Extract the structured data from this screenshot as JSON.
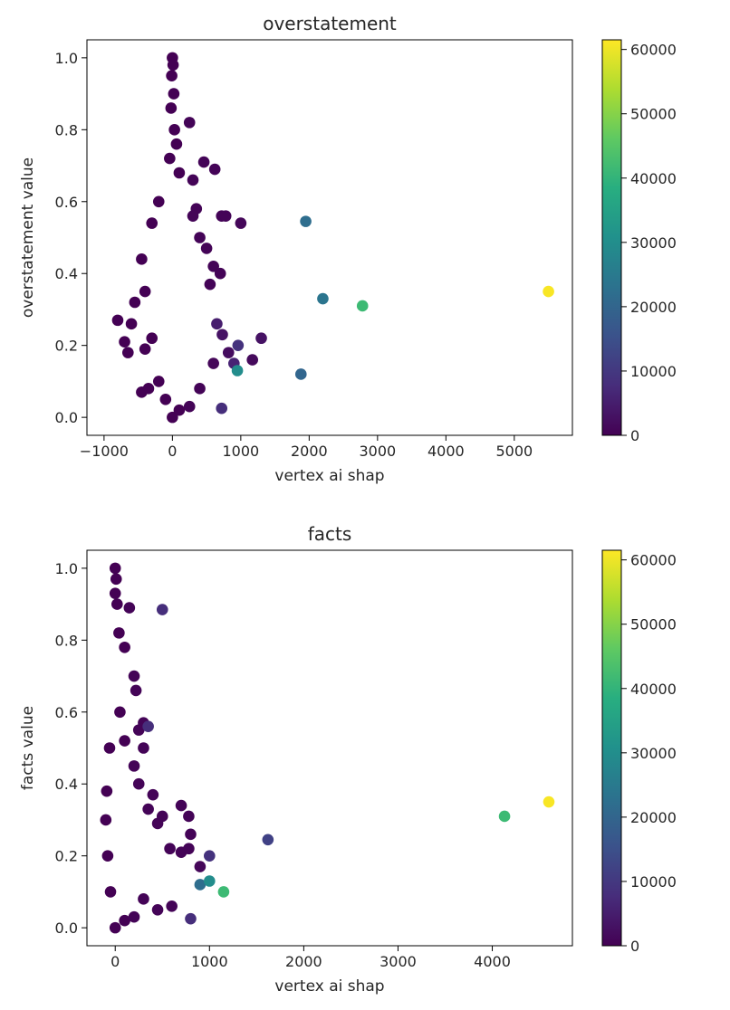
{
  "chart_data": [
    {
      "type": "scatter",
      "title": "overstatement",
      "xlabel": "vertex ai shap",
      "ylabel": "overstatement value",
      "xlim": [
        -1250,
        5850
      ],
      "ylim": [
        -0.05,
        1.05
      ],
      "xticks": [
        -1000,
        0,
        1000,
        2000,
        3000,
        4000,
        5000
      ],
      "xtick_labels": [
        "−1000",
        "0",
        "1000",
        "2000",
        "3000",
        "4000",
        "5000"
      ],
      "yticks": [
        0.0,
        0.2,
        0.4,
        0.6,
        0.8,
        1.0
      ],
      "ytick_labels": [
        "0.0",
        "0.2",
        "0.4",
        "0.6",
        "0.8",
        "1.0"
      ],
      "colorbar": {
        "colormap": "viridis",
        "min": 0,
        "max": 61500,
        "ticks": [
          0,
          10000,
          20000,
          30000,
          40000,
          50000,
          60000
        ]
      },
      "grid": false,
      "points": [
        {
          "x": 0,
          "y": 1.0,
          "c": 0
        },
        {
          "x": 10,
          "y": 0.98,
          "c": 0
        },
        {
          "x": -10,
          "y": 0.95,
          "c": 0
        },
        {
          "x": 20,
          "y": 0.9,
          "c": 0
        },
        {
          "x": -20,
          "y": 0.86,
          "c": 0
        },
        {
          "x": 30,
          "y": 0.8,
          "c": 0
        },
        {
          "x": 60,
          "y": 0.76,
          "c": 0
        },
        {
          "x": -40,
          "y": 0.72,
          "c": 0
        },
        {
          "x": 250,
          "y": 0.82,
          "c": 500
        },
        {
          "x": 100,
          "y": 0.68,
          "c": 0
        },
        {
          "x": 460,
          "y": 0.71,
          "c": 500
        },
        {
          "x": 620,
          "y": 0.69,
          "c": 500
        },
        {
          "x": 300,
          "y": 0.66,
          "c": 500
        },
        {
          "x": 350,
          "y": 0.58,
          "c": 500
        },
        {
          "x": 720,
          "y": 0.56,
          "c": 500
        },
        {
          "x": 780,
          "y": 0.56,
          "c": 500
        },
        {
          "x": 1000,
          "y": 0.54,
          "c": 1000
        },
        {
          "x": -300,
          "y": 0.54,
          "c": 0
        },
        {
          "x": -200,
          "y": 0.6,
          "c": 0
        },
        {
          "x": 300,
          "y": 0.56,
          "c": 500
        },
        {
          "x": 400,
          "y": 0.5,
          "c": 500
        },
        {
          "x": 500,
          "y": 0.47,
          "c": 500
        },
        {
          "x": 600,
          "y": 0.42,
          "c": 500
        },
        {
          "x": 700,
          "y": 0.4,
          "c": 500
        },
        {
          "x": 550,
          "y": 0.37,
          "c": 500
        },
        {
          "x": -450,
          "y": 0.44,
          "c": 0
        },
        {
          "x": -400,
          "y": 0.35,
          "c": 0
        },
        {
          "x": -550,
          "y": 0.32,
          "c": 0
        },
        {
          "x": -600,
          "y": 0.26,
          "c": 0
        },
        {
          "x": -800,
          "y": 0.27,
          "c": 0
        },
        {
          "x": -700,
          "y": 0.21,
          "c": 0
        },
        {
          "x": -650,
          "y": 0.18,
          "c": 0
        },
        {
          "x": -400,
          "y": 0.19,
          "c": 0
        },
        {
          "x": -300,
          "y": 0.22,
          "c": 0
        },
        {
          "x": -450,
          "y": 0.07,
          "c": 0
        },
        {
          "x": -350,
          "y": 0.08,
          "c": 0
        },
        {
          "x": -200,
          "y": 0.1,
          "c": 0
        },
        {
          "x": -100,
          "y": 0.05,
          "c": 0
        },
        {
          "x": 0,
          "y": 0.0,
          "c": 0
        },
        {
          "x": 100,
          "y": 0.02,
          "c": 0
        },
        {
          "x": 250,
          "y": 0.03,
          "c": 500
        },
        {
          "x": 400,
          "y": 0.08,
          "c": 500
        },
        {
          "x": 600,
          "y": 0.15,
          "c": 1000
        },
        {
          "x": 650,
          "y": 0.26,
          "c": 5000
        },
        {
          "x": 730,
          "y": 0.23,
          "c": 3000
        },
        {
          "x": 820,
          "y": 0.18,
          "c": 2000
        },
        {
          "x": 900,
          "y": 0.15,
          "c": 6000
        },
        {
          "x": 960,
          "y": 0.2,
          "c": 9000
        },
        {
          "x": 1170,
          "y": 0.16,
          "c": 1500
        },
        {
          "x": 1300,
          "y": 0.22,
          "c": 3000
        },
        {
          "x": 720,
          "y": 0.025,
          "c": 8000
        },
        {
          "x": 950,
          "y": 0.13,
          "c": 30000
        },
        {
          "x": 1950,
          "y": 0.545,
          "c": 22000
        },
        {
          "x": 1880,
          "y": 0.12,
          "c": 20000
        },
        {
          "x": 2200,
          "y": 0.33,
          "c": 24000
        },
        {
          "x": 2780,
          "y": 0.31,
          "c": 42000
        },
        {
          "x": 5500,
          "y": 0.35,
          "c": 61000
        }
      ]
    },
    {
      "type": "scatter",
      "title": "facts",
      "xlabel": "vertex ai shap",
      "ylabel": "facts value",
      "xlim": [
        -300,
        4850
      ],
      "ylim": [
        -0.05,
        1.05
      ],
      "xticks": [
        0,
        1000,
        2000,
        3000,
        4000
      ],
      "xtick_labels": [
        "0",
        "1000",
        "2000",
        "3000",
        "4000"
      ],
      "yticks": [
        0.0,
        0.2,
        0.4,
        0.6,
        0.8,
        1.0
      ],
      "ytick_labels": [
        "0.0",
        "0.2",
        "0.4",
        "0.6",
        "0.8",
        "1.0"
      ],
      "colorbar": {
        "colormap": "viridis",
        "min": 0,
        "max": 61500,
        "ticks": [
          0,
          10000,
          20000,
          30000,
          40000,
          50000,
          60000
        ]
      },
      "grid": false,
      "points": [
        {
          "x": 0,
          "y": 1.0,
          "c": 0
        },
        {
          "x": 10,
          "y": 0.97,
          "c": 0
        },
        {
          "x": 0,
          "y": 0.93,
          "c": 0
        },
        {
          "x": 20,
          "y": 0.9,
          "c": 0
        },
        {
          "x": 150,
          "y": 0.89,
          "c": 500
        },
        {
          "x": 500,
          "y": 0.885,
          "c": 8000
        },
        {
          "x": 40,
          "y": 0.82,
          "c": 0
        },
        {
          "x": 100,
          "y": 0.78,
          "c": 0
        },
        {
          "x": 200,
          "y": 0.7,
          "c": 500
        },
        {
          "x": 220,
          "y": 0.66,
          "c": 500
        },
        {
          "x": 50,
          "y": 0.6,
          "c": 0
        },
        {
          "x": 300,
          "y": 0.57,
          "c": 500
        },
        {
          "x": 350,
          "y": 0.56,
          "c": 8000
        },
        {
          "x": 250,
          "y": 0.55,
          "c": 500
        },
        {
          "x": 100,
          "y": 0.52,
          "c": 0
        },
        {
          "x": 300,
          "y": 0.5,
          "c": 500
        },
        {
          "x": 200,
          "y": 0.45,
          "c": 500
        },
        {
          "x": 250,
          "y": 0.4,
          "c": 500
        },
        {
          "x": 400,
          "y": 0.37,
          "c": 500
        },
        {
          "x": 350,
          "y": 0.33,
          "c": 500
        },
        {
          "x": 450,
          "y": 0.29,
          "c": 500
        },
        {
          "x": 500,
          "y": 0.31,
          "c": 500
        },
        {
          "x": 700,
          "y": 0.34,
          "c": 500
        },
        {
          "x": 780,
          "y": 0.31,
          "c": 500
        },
        {
          "x": 800,
          "y": 0.26,
          "c": 500
        },
        {
          "x": 580,
          "y": 0.22,
          "c": 500
        },
        {
          "x": 700,
          "y": 0.21,
          "c": 500
        },
        {
          "x": 780,
          "y": 0.22,
          "c": 500
        },
        {
          "x": 1000,
          "y": 0.2,
          "c": 9000
        },
        {
          "x": 900,
          "y": 0.17,
          "c": 1000
        },
        {
          "x": 900,
          "y": 0.12,
          "c": 22000
        },
        {
          "x": 1000,
          "y": 0.13,
          "c": 30000
        },
        {
          "x": 1150,
          "y": 0.1,
          "c": 42000
        },
        {
          "x": 1620,
          "y": 0.245,
          "c": 12000
        },
        {
          "x": 800,
          "y": 0.025,
          "c": 8000
        },
        {
          "x": 600,
          "y": 0.06,
          "c": 500
        },
        {
          "x": 450,
          "y": 0.05,
          "c": 500
        },
        {
          "x": 300,
          "y": 0.08,
          "c": 500
        },
        {
          "x": 200,
          "y": 0.03,
          "c": 500
        },
        {
          "x": 100,
          "y": 0.02,
          "c": 0
        },
        {
          "x": 0,
          "y": 0.0,
          "c": 0
        },
        {
          "x": -50,
          "y": 0.1,
          "c": 0
        },
        {
          "x": -80,
          "y": 0.2,
          "c": 0
        },
        {
          "x": -100,
          "y": 0.3,
          "c": 0
        },
        {
          "x": -90,
          "y": 0.38,
          "c": 0
        },
        {
          "x": -60,
          "y": 0.5,
          "c": 0
        },
        {
          "x": 4130,
          "y": 0.31,
          "c": 42000
        },
        {
          "x": 4600,
          "y": 0.35,
          "c": 61000
        }
      ]
    }
  ]
}
